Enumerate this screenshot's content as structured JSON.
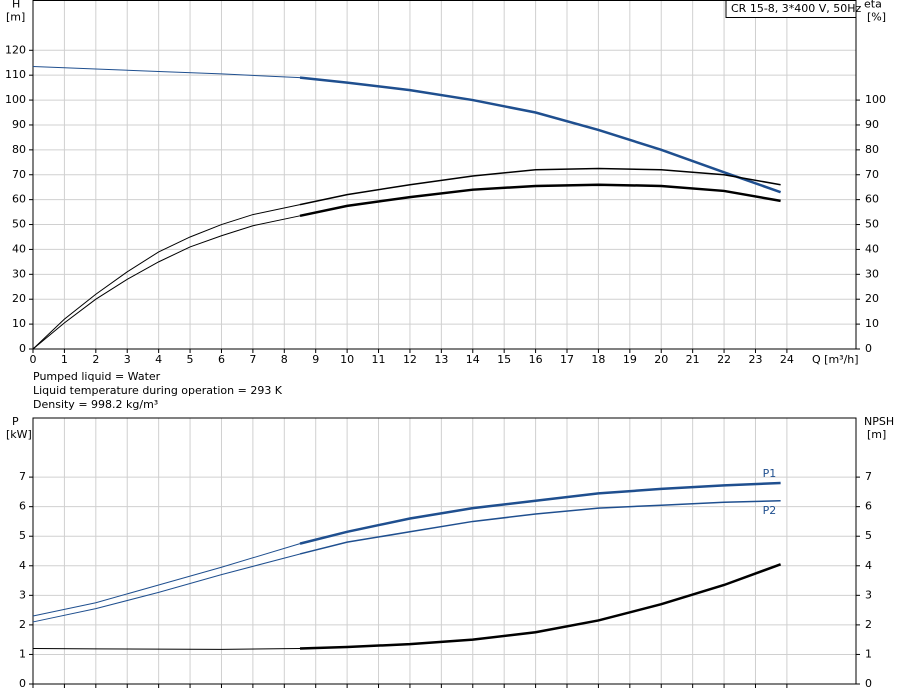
{
  "chart_data": [
    {
      "type": "line",
      "title": "CR 15-8, 3*400 V, 50Hz",
      "ylabel": [
        "H",
        "[m]"
      ],
      "y2label": [
        "eta",
        "[%]"
      ],
      "xlabel": "Q [m³/h]",
      "annotations": [
        "Pumped liquid = Water",
        "Liquid temperature during operation = 293 K",
        "Density = 998.2 kg/m³"
      ],
      "xlim": [
        0,
        26.2
      ],
      "xticks": [
        0,
        1,
        2,
        3,
        4,
        5,
        6,
        7,
        8,
        9,
        10,
        11,
        12,
        13,
        14,
        15,
        16,
        17,
        18,
        19,
        20,
        21,
        22,
        23,
        24
      ],
      "ylim": [
        0,
        140
      ],
      "yticks": [
        0,
        10,
        20,
        30,
        40,
        50,
        60,
        70,
        80,
        90,
        100,
        110,
        120
      ],
      "y2lim": [
        0,
        140
      ],
      "y2ticks": [
        0,
        10,
        20,
        30,
        40,
        50,
        60,
        70,
        80,
        90,
        100
      ],
      "grid": true,
      "xtick_labels": true,
      "series": [
        {
          "color": "#1f4f8f",
          "width": 1,
          "x": [
            0,
            2,
            4,
            6,
            8.5
          ],
          "values": [
            113.5,
            112.5,
            111.5,
            110.5,
            109
          ]
        },
        {
          "color": "#1f4f8f",
          "width": 2.5,
          "x": [
            8.5,
            10,
            12,
            14,
            16,
            18,
            20,
            22,
            23.8
          ],
          "values": [
            109,
            107,
            104,
            100,
            95,
            88,
            80,
            71,
            63
          ]
        },
        {
          "color": "#000000",
          "width": 1,
          "axis": "y2",
          "x": [
            0,
            1,
            2,
            3,
            4,
            5,
            6,
            7,
            8.5
          ],
          "values": [
            0,
            12,
            22,
            31,
            39,
            45,
            50,
            54,
            58
          ]
        },
        {
          "color": "#000000",
          "width": 1.5,
          "axis": "y2",
          "x": [
            8.5,
            10,
            12,
            14,
            16,
            18,
            20,
            22,
            23.8
          ],
          "values": [
            58,
            62,
            66,
            69.5,
            72,
            72.5,
            72,
            70,
            66
          ]
        },
        {
          "color": "#000000",
          "width": 1,
          "axis": "y2",
          "x": [
            0,
            1,
            2,
            3,
            4,
            5,
            6,
            7,
            8.5
          ],
          "values": [
            0,
            10.5,
            20,
            28,
            35,
            41,
            45.5,
            49.5,
            53.5
          ]
        },
        {
          "color": "#000000",
          "width": 2.5,
          "axis": "y2",
          "x": [
            8.5,
            10,
            12,
            14,
            16,
            18,
            20,
            22,
            23.8
          ],
          "values": [
            53.5,
            57.5,
            61,
            64,
            65.5,
            66,
            65.5,
            63.5,
            59.5
          ]
        }
      ]
    },
    {
      "type": "line",
      "ylabel": [
        "P",
        "[kW]"
      ],
      "y2label": [
        "NPSH",
        "[m]"
      ],
      "xlim": [
        0,
        26.2
      ],
      "xticks": [
        0,
        1,
        2,
        3,
        4,
        5,
        6,
        7,
        8,
        9,
        10,
        11,
        12,
        13,
        14,
        15,
        16,
        17,
        18,
        19,
        20,
        21,
        22,
        23,
        24
      ],
      "ylim": [
        0,
        9
      ],
      "yticks": [
        0,
        1,
        2,
        3,
        4,
        5,
        6,
        7
      ],
      "y2lim": [
        0,
        9
      ],
      "y2ticks": [
        0,
        1,
        2,
        3,
        4,
        5,
        6,
        7
      ],
      "grid": true,
      "xtick_labels": false,
      "series": [
        {
          "color": "#1f4f8f",
          "width": 1,
          "x": [
            0,
            2,
            4,
            6,
            8.5
          ],
          "values": [
            2.3,
            2.75,
            3.35,
            3.95,
            4.75
          ]
        },
        {
          "name": "P1",
          "color": "#1f4f8f",
          "width": 2.5,
          "x": [
            8.5,
            10,
            12,
            14,
            16,
            18,
            20,
            22,
            23.8
          ],
          "values": [
            4.75,
            5.15,
            5.6,
            5.95,
            6.2,
            6.45,
            6.6,
            6.72,
            6.8
          ]
        },
        {
          "color": "#1f4f8f",
          "width": 1,
          "x": [
            0,
            2,
            4,
            6,
            8.5
          ],
          "values": [
            2.1,
            2.55,
            3.1,
            3.7,
            4.4
          ]
        },
        {
          "name": "P2",
          "color": "#1f4f8f",
          "width": 1.5,
          "x": [
            8.5,
            10,
            12,
            14,
            16,
            18,
            20,
            22,
            23.8
          ],
          "values": [
            4.4,
            4.8,
            5.15,
            5.5,
            5.75,
            5.95,
            6.05,
            6.15,
            6.2
          ]
        },
        {
          "color": "#000000",
          "width": 1,
          "axis": "y2",
          "x": [
            0,
            2,
            4,
            6,
            8.5
          ],
          "values": [
            1.2,
            1.19,
            1.18,
            1.17,
            1.2
          ]
        },
        {
          "color": "#000000",
          "width": 2.5,
          "axis": "y2",
          "x": [
            8.5,
            10,
            12,
            14,
            16,
            18,
            20,
            22,
            23.8
          ],
          "values": [
            1.2,
            1.25,
            1.35,
            1.5,
            1.75,
            2.15,
            2.7,
            3.35,
            4.05
          ]
        }
      ]
    }
  ]
}
